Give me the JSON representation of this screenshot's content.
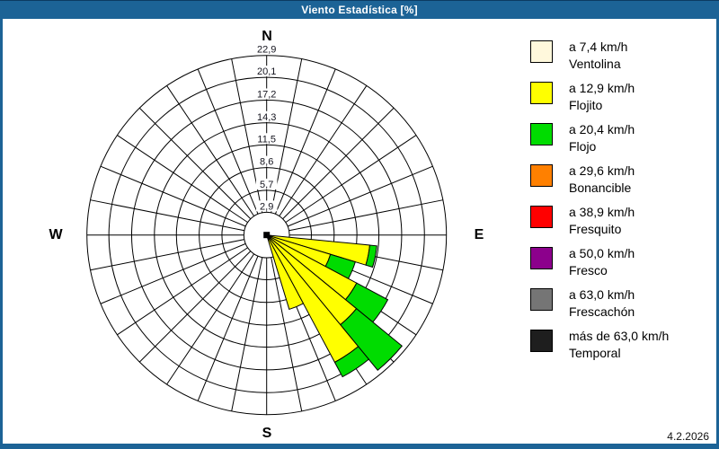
{
  "window": {
    "title": "Viento Estadística [%]",
    "date": "4.2.2026",
    "colors": {
      "frame": "#1C6396",
      "background": "#FFFFFF",
      "grid": "#000000"
    }
  },
  "compass": {
    "north": "N",
    "east": "E",
    "south": "S",
    "west": "W"
  },
  "chart_data": {
    "type": "bar",
    "subtype": "wind-rose-polar-stacked",
    "title": "Viento Estadística [%]",
    "unit": "%",
    "grid": true,
    "legend_position": "right",
    "rings": {
      "values": [
        2.9,
        5.7,
        8.6,
        11.5,
        14.3,
        17.2,
        20.1,
        22.9
      ],
      "labels": [
        "2,9",
        "5,7",
        "8,6",
        "11,5",
        "14,3",
        "17,2",
        "20,1",
        "22,9"
      ],
      "max": 22.9
    },
    "spokes": 32,
    "sector_width_deg": 11.25,
    "directions_deg": [
      101.25,
      112.5,
      123.75,
      135,
      146.25,
      157.5
    ],
    "series": [
      {
        "name": "Flojito",
        "color": "#FFFF00",
        "values": [
          13.2,
          8.5,
          13.0,
          14.8,
          18.4,
          9.9
        ]
      },
      {
        "name": "Flojo",
        "color": "#00DC00",
        "values": [
          0.9,
          3.3,
          4.5,
          7.5,
          2.1,
          0
        ]
      }
    ],
    "center_marker_color": "#000000"
  },
  "legend": {
    "items": [
      {
        "color": "#FFF8DC",
        "speed": "a 7,4 km/h",
        "name": "Ventolina"
      },
      {
        "color": "#FFFF00",
        "speed": "a 12,9 km/h",
        "name": "Flojito"
      },
      {
        "color": "#00DC00",
        "speed": "a 20,4 km/h",
        "name": "Flojo"
      },
      {
        "color": "#FF8000",
        "speed": "a 29,6 km/h",
        "name": "Bonancible"
      },
      {
        "color": "#FF0000",
        "speed": "a 38,9 km/h",
        "name": "Fresquito"
      },
      {
        "color": "#8C008C",
        "speed": "a 50,0 km/h",
        "name": "Fresco"
      },
      {
        "color": "#757575",
        "speed": "a 63,0 km/h",
        "name": "Frescachón"
      },
      {
        "color": "#1E1E1E",
        "speed": "más de 63,0 km/h",
        "name": "Temporal"
      }
    ]
  }
}
